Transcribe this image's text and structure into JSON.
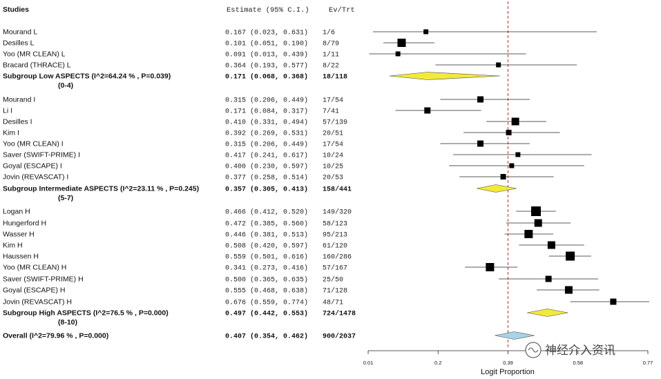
{
  "header": {
    "studies": "Studies",
    "estimate": "Estimate (95% C.I.)",
    "evtrt": "Ev/Trt"
  },
  "watermark": {
    "text": "神经介入资讯"
  },
  "chart_data": {
    "type": "forest",
    "xlabel": "Logit Proportion",
    "x_ticks": [
      "0.01",
      "0.2",
      "0.39",
      "0.58",
      "0.77"
    ],
    "xlim": [
      0.01,
      0.77
    ],
    "reference_line": 0.39,
    "reference_color": "#b03030",
    "subgroup_color": "#f2ea3a",
    "overall_color": "#a8d4e6",
    "rows": [
      {
        "kind": "study",
        "name": "Mourand L",
        "est": 0.167,
        "lo": 0.023,
        "hi": 0.631,
        "est_txt": "0.167",
        "ci_txt": "(0.023, 0.631)",
        "evtrt": "1/6",
        "size": 7
      },
      {
        "kind": "study",
        "name": "Desilles L",
        "est": 0.101,
        "lo": 0.051,
        "hi": 0.19,
        "est_txt": "0.101",
        "ci_txt": "(0.051, 0.190)",
        "evtrt": "8/79",
        "size": 12
      },
      {
        "kind": "study",
        "name": "Yoo (MR CLEAN) L",
        "est": 0.091,
        "lo": 0.013,
        "hi": 0.439,
        "est_txt": "0.091",
        "ci_txt": "(0.013, 0.439)",
        "evtrt": "1/11",
        "size": 7
      },
      {
        "kind": "study",
        "name": "Bracard (THRACE) L",
        "est": 0.364,
        "lo": 0.193,
        "hi": 0.577,
        "est_txt": "0.364",
        "ci_txt": "(0.193, 0.577)",
        "evtrt": "8/22",
        "size": 7
      },
      {
        "kind": "subgroup",
        "name": "Subgroup Low ASPECTS (I^2=64.24 % , P=0.039)",
        "sub": "(0-4)",
        "est": 0.171,
        "lo": 0.068,
        "hi": 0.368,
        "est_txt": "0.171",
        "ci_txt": "(0.068, 0.368)",
        "evtrt": "18/118"
      },
      {
        "kind": "study",
        "name": "Mourand I",
        "est": 0.315,
        "lo": 0.206,
        "hi": 0.449,
        "est_txt": "0.315",
        "ci_txt": "(0.206, 0.449)",
        "evtrt": "17/54",
        "size": 9
      },
      {
        "kind": "study",
        "name": "Li I",
        "est": 0.171,
        "lo": 0.084,
        "hi": 0.317,
        "est_txt": "0.171",
        "ci_txt": "(0.084, 0.317)",
        "evtrt": "7/41",
        "size": 9
      },
      {
        "kind": "study",
        "name": "Desilles I",
        "est": 0.41,
        "lo": 0.331,
        "hi": 0.494,
        "est_txt": "0.410",
        "ci_txt": "(0.331, 0.494)",
        "evtrt": "57/139",
        "size": 11
      },
      {
        "kind": "study",
        "name": "Kim I",
        "est": 0.392,
        "lo": 0.269,
        "hi": 0.531,
        "est_txt": "0.392",
        "ci_txt": "(0.269, 0.531)",
        "evtrt": "20/51",
        "size": 8
      },
      {
        "kind": "study",
        "name": "Yoo (MR CLEAN) I",
        "est": 0.315,
        "lo": 0.206,
        "hi": 0.449,
        "est_txt": "0.315",
        "ci_txt": "(0.206, 0.449)",
        "evtrt": "17/54",
        "size": 9
      },
      {
        "kind": "study",
        "name": "Saver (SWIFT-PRIME) I",
        "est": 0.417,
        "lo": 0.241,
        "hi": 0.617,
        "est_txt": "0.417",
        "ci_txt": "(0.241, 0.617)",
        "evtrt": "10/24",
        "size": 7
      },
      {
        "kind": "study",
        "name": "Goyal (ESCAPE) I",
        "est": 0.4,
        "lo": 0.23,
        "hi": 0.597,
        "est_txt": "0.400",
        "ci_txt": "(0.230, 0.597)",
        "evtrt": "10/25",
        "size": 7
      },
      {
        "kind": "study",
        "name": "Jovin (REVASCAT) I",
        "est": 0.377,
        "lo": 0.258,
        "hi": 0.514,
        "est_txt": "0.377",
        "ci_txt": "(0.258, 0.514)",
        "evtrt": "20/53",
        "size": 8
      },
      {
        "kind": "subgroup",
        "name": "Subgroup Intermediate ASPECTS (I^2=23.11 % , P=0.245)",
        "sub": "(5-7)",
        "est": 0.357,
        "lo": 0.305,
        "hi": 0.413,
        "est_txt": "0.357",
        "ci_txt": "(0.305, 0.413)",
        "evtrt": "158/441"
      },
      {
        "kind": "study",
        "name": "Logan H",
        "est": 0.466,
        "lo": 0.412,
        "hi": 0.52,
        "est_txt": "0.466",
        "ci_txt": "(0.412, 0.520)",
        "evtrt": "149/320",
        "size": 14
      },
      {
        "kind": "study",
        "name": "Hungerford H",
        "est": 0.472,
        "lo": 0.385,
        "hi": 0.56,
        "est_txt": "0.472",
        "ci_txt": "(0.385, 0.560)",
        "evtrt": "58/123",
        "size": 11
      },
      {
        "kind": "study",
        "name": "Wasser H",
        "est": 0.446,
        "lo": 0.381,
        "hi": 0.513,
        "est_txt": "0.446",
        "ci_txt": "(0.381, 0.513)",
        "evtrt": "95/213",
        "size": 12
      },
      {
        "kind": "study",
        "name": "Kim H",
        "est": 0.508,
        "lo": 0.42,
        "hi": 0.597,
        "est_txt": "0.508",
        "ci_txt": "(0.420, 0.597)",
        "evtrt": "61/120",
        "size": 11
      },
      {
        "kind": "study",
        "name": "Haussen H",
        "est": 0.559,
        "lo": 0.501,
        "hi": 0.616,
        "est_txt": "0.559",
        "ci_txt": "(0.501, 0.616)",
        "evtrt": "160/286",
        "size": 13
      },
      {
        "kind": "study",
        "name": "Yoo (MR CLEAN) H",
        "est": 0.341,
        "lo": 0.273,
        "hi": 0.416,
        "est_txt": "0.341",
        "ci_txt": "(0.273, 0.416)",
        "evtrt": "57/167",
        "size": 12
      },
      {
        "kind": "study",
        "name": "Saver (SWIFT-PRIME) H",
        "est": 0.5,
        "lo": 0.365,
        "hi": 0.635,
        "est_txt": "0.500",
        "ci_txt": "(0.365, 0.635)",
        "evtrt": "25/50",
        "size": 9
      },
      {
        "kind": "study",
        "name": "Goyal (ESCAPE) H",
        "est": 0.555,
        "lo": 0.468,
        "hi": 0.638,
        "est_txt": "0.555",
        "ci_txt": "(0.468, 0.638)",
        "evtrt": "71/128",
        "size": 11
      },
      {
        "kind": "study",
        "name": "Jovin (REVASCAT) H",
        "est": 0.676,
        "lo": 0.559,
        "hi": 0.774,
        "est_txt": "0.676",
        "ci_txt": "(0.559, 0.774)",
        "evtrt": "48/71",
        "size": 9
      },
      {
        "kind": "subgroup",
        "name": "Subgroup High ASPECTS (I^2=76.5 % , P=0.000)",
        "sub": "(8-10)",
        "est": 0.497,
        "lo": 0.442,
        "hi": 0.553,
        "est_txt": "0.497",
        "ci_txt": "(0.442, 0.553)",
        "evtrt": "724/1478"
      },
      {
        "kind": "overall",
        "name": "Overall (I^2=79.96 % , P=0.000)",
        "est": 0.407,
        "lo": 0.354,
        "hi": 0.462,
        "est_txt": "0.407",
        "ci_txt": "(0.354, 0.462)",
        "evtrt": "900/2037"
      }
    ]
  }
}
